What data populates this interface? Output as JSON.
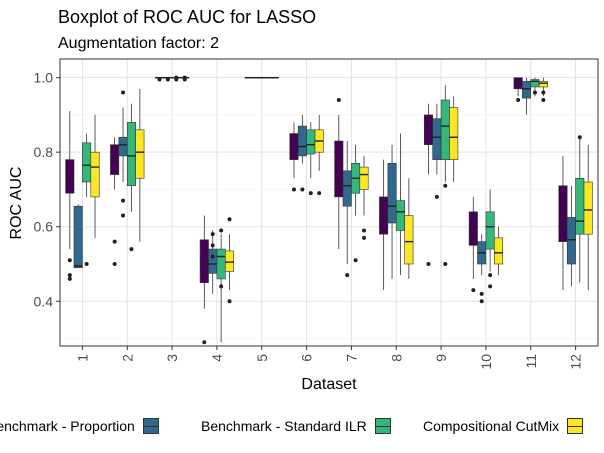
{
  "chart_data": {
    "type": "boxplot",
    "title": "Boxplot of ROC AUC for LASSO",
    "subtitle": "Augmentation factor: 2",
    "xlabel": "Dataset",
    "ylabel": "ROC AUC",
    "ylim": [
      0.28,
      1.05
    ],
    "yticks": [
      0.4,
      0.6,
      0.8,
      1.0
    ],
    "ytick_labels": [
      "0.4",
      "0.6",
      "0.8",
      "1.0"
    ],
    "grid": true,
    "legend_position": "bottom",
    "categories": [
      "1",
      "2",
      "3",
      "4",
      "5",
      "6",
      "7",
      "8",
      "9",
      "10",
      "11",
      "12"
    ],
    "series": [
      {
        "name": "",
        "color": "#440154"
      },
      {
        "name": "Benchmark - Proportion",
        "color": "#31688E"
      },
      {
        "name": "Benchmark - Standard ILR",
        "color": "#35B779"
      },
      {
        "name": "Compositional CutMix",
        "color": "#FDE725"
      }
    ],
    "boxes": [
      [
        {
          "min": 0.54,
          "q1": 0.69,
          "med": 0.735,
          "q3": 0.78,
          "max": 0.91,
          "out": [
            0.51,
            0.47,
            0.46
          ]
        },
        {
          "min": 0.49,
          "q1": 0.49,
          "med": 0.495,
          "q3": 0.655,
          "max": 0.66,
          "out": []
        },
        {
          "min": 0.68,
          "q1": 0.72,
          "med": 0.765,
          "q3": 0.825,
          "max": 0.85,
          "out": [
            0.5
          ]
        },
        {
          "min": 0.57,
          "q1": 0.68,
          "med": 0.76,
          "q3": 0.8,
          "max": 0.9,
          "out": []
        }
      ],
      [
        {
          "min": 0.7,
          "q1": 0.74,
          "med": 0.78,
          "q3": 0.82,
          "max": 0.84,
          "out": [
            0.56,
            0.5
          ]
        },
        {
          "min": 0.72,
          "q1": 0.79,
          "med": 0.82,
          "q3": 0.84,
          "max": 0.92,
          "out": [
            0.96,
            0.67,
            0.63
          ]
        },
        {
          "min": 0.64,
          "q1": 0.71,
          "med": 0.79,
          "q3": 0.88,
          "max": 0.93,
          "out": [
            0.54
          ]
        },
        {
          "min": 0.56,
          "q1": 0.73,
          "med": 0.8,
          "q3": 0.86,
          "max": 0.97,
          "out": []
        }
      ],
      [
        {
          "min": 1.0,
          "q1": 1.0,
          "med": 1.0,
          "q3": 1.0,
          "max": 1.0,
          "out": [
            0.995
          ]
        },
        {
          "min": 1.0,
          "q1": 1.0,
          "med": 1.0,
          "q3": 1.0,
          "max": 1.0,
          "out": [
            0.995
          ]
        },
        {
          "min": 1.0,
          "q1": 1.0,
          "med": 1.0,
          "q3": 1.0,
          "max": 1.0,
          "out": [
            0.995,
            1.0
          ]
        },
        {
          "min": 1.0,
          "q1": 1.0,
          "med": 1.0,
          "q3": 1.0,
          "max": 1.0,
          "out": [
            0.995,
            1.0
          ]
        }
      ],
      [
        {
          "min": 0.38,
          "q1": 0.45,
          "med": 0.5,
          "q3": 0.565,
          "max": 0.63,
          "out": [
            0.29
          ]
        },
        {
          "min": 0.42,
          "q1": 0.475,
          "med": 0.5,
          "q3": 0.54,
          "max": 0.59,
          "out": [
            0.58,
            0.55,
            0.52
          ]
        },
        {
          "min": 0.29,
          "q1": 0.46,
          "med": 0.52,
          "q3": 0.54,
          "max": 0.58,
          "out": [
            0.59,
            0.44
          ]
        },
        {
          "min": 0.43,
          "q1": 0.48,
          "med": 0.505,
          "q3": 0.535,
          "max": 0.58,
          "out": [
            0.62,
            0.4
          ]
        }
      ],
      [
        {
          "min": 1.0,
          "q1": 1.0,
          "med": 1.0,
          "q3": 1.0,
          "max": 1.0,
          "out": []
        },
        {
          "min": 1.0,
          "q1": 1.0,
          "med": 1.0,
          "q3": 1.0,
          "max": 1.0,
          "out": []
        },
        {
          "min": 1.0,
          "q1": 1.0,
          "med": 1.0,
          "q3": 1.0,
          "max": 1.0,
          "out": []
        },
        {
          "min": 1.0,
          "q1": 1.0,
          "med": 1.0,
          "q3": 1.0,
          "max": 1.0,
          "out": []
        }
      ],
      [
        {
          "min": 0.73,
          "q1": 0.78,
          "med": 0.81,
          "q3": 0.85,
          "max": 0.88,
          "out": [
            0.7
          ]
        },
        {
          "min": 0.77,
          "q1": 0.79,
          "med": 0.815,
          "q3": 0.87,
          "max": 0.9,
          "out": [
            0.7
          ]
        },
        {
          "min": 0.73,
          "q1": 0.795,
          "med": 0.82,
          "q3": 0.86,
          "max": 0.88,
          "out": [
            0.69
          ]
        },
        {
          "min": 0.75,
          "q1": 0.8,
          "med": 0.83,
          "q3": 0.86,
          "max": 0.9,
          "out": [
            0.69
          ]
        }
      ],
      [
        {
          "min": 0.54,
          "q1": 0.68,
          "med": 0.71,
          "q3": 0.83,
          "max": 0.9,
          "out": [
            0.94
          ]
        },
        {
          "min": 0.5,
          "q1": 0.655,
          "med": 0.71,
          "q3": 0.75,
          "max": 0.83,
          "out": [
            0.47
          ]
        },
        {
          "min": 0.63,
          "q1": 0.69,
          "med": 0.73,
          "q3": 0.77,
          "max": 0.82,
          "out": [
            0.51
          ]
        },
        {
          "min": 0.63,
          "q1": 0.7,
          "med": 0.74,
          "q3": 0.76,
          "max": 0.79,
          "out": [
            0.59,
            0.57
          ]
        }
      ],
      [
        {
          "min": 0.43,
          "q1": 0.58,
          "med": 0.62,
          "q3": 0.68,
          "max": 0.78,
          "out": []
        },
        {
          "min": 0.46,
          "q1": 0.61,
          "med": 0.655,
          "q3": 0.77,
          "max": 0.82,
          "out": []
        },
        {
          "min": 0.47,
          "q1": 0.59,
          "med": 0.64,
          "q3": 0.67,
          "max": 0.85,
          "out": []
        },
        {
          "min": 0.46,
          "q1": 0.5,
          "med": 0.56,
          "q3": 0.63,
          "max": 0.73,
          "out": []
        }
      ],
      [
        {
          "min": 0.74,
          "q1": 0.82,
          "med": 0.85,
          "q3": 0.9,
          "max": 0.93,
          "out": [
            0.5
          ]
        },
        {
          "min": 0.74,
          "q1": 0.78,
          "med": 0.84,
          "q3": 0.89,
          "max": 0.93,
          "out": [
            0.68
          ]
        },
        {
          "min": 0.72,
          "q1": 0.78,
          "med": 0.87,
          "q3": 0.94,
          "max": 0.98,
          "out": [
            0.71,
            0.5
          ]
        },
        {
          "min": 0.72,
          "q1": 0.78,
          "med": 0.84,
          "q3": 0.92,
          "max": 0.95,
          "out": []
        }
      ],
      [
        {
          "min": 0.46,
          "q1": 0.55,
          "med": 0.59,
          "q3": 0.64,
          "max": 0.68,
          "out": [
            0.43
          ]
        },
        {
          "min": 0.47,
          "q1": 0.5,
          "med": 0.53,
          "q3": 0.56,
          "max": 0.58,
          "out": [
            0.42,
            0.4
          ]
        },
        {
          "min": 0.48,
          "q1": 0.54,
          "med": 0.6,
          "q3": 0.64,
          "max": 0.7,
          "out": [
            0.47,
            0.44
          ]
        },
        {
          "min": 0.47,
          "q1": 0.5,
          "med": 0.53,
          "q3": 0.57,
          "max": 0.6,
          "out": []
        }
      ],
      [
        {
          "min": 0.95,
          "q1": 0.97,
          "med": 0.99,
          "q3": 1.0,
          "max": 1.0,
          "out": [
            0.94
          ]
        },
        {
          "min": 0.9,
          "q1": 0.945,
          "med": 0.97,
          "q3": 0.99,
          "max": 1.0,
          "out": []
        },
        {
          "min": 0.95,
          "q1": 0.975,
          "med": 0.99,
          "q3": 0.995,
          "max": 1.0,
          "out": [
            0.96
          ]
        },
        {
          "min": 0.95,
          "q1": 0.975,
          "med": 0.985,
          "q3": 0.99,
          "max": 1.0,
          "out": [
            0.94,
            0.96
          ]
        }
      ],
      [
        {
          "min": 0.43,
          "q1": 0.56,
          "med": 0.6,
          "q3": 0.71,
          "max": 0.79,
          "out": []
        },
        {
          "min": 0.44,
          "q1": 0.5,
          "med": 0.565,
          "q3": 0.625,
          "max": 0.71,
          "out": []
        },
        {
          "min": 0.45,
          "q1": 0.58,
          "med": 0.615,
          "q3": 0.73,
          "max": 0.84,
          "out": [
            0.84
          ]
        },
        {
          "min": 0.43,
          "q1": 0.58,
          "med": 0.645,
          "q3": 0.72,
          "max": 0.82,
          "out": []
        }
      ]
    ]
  }
}
